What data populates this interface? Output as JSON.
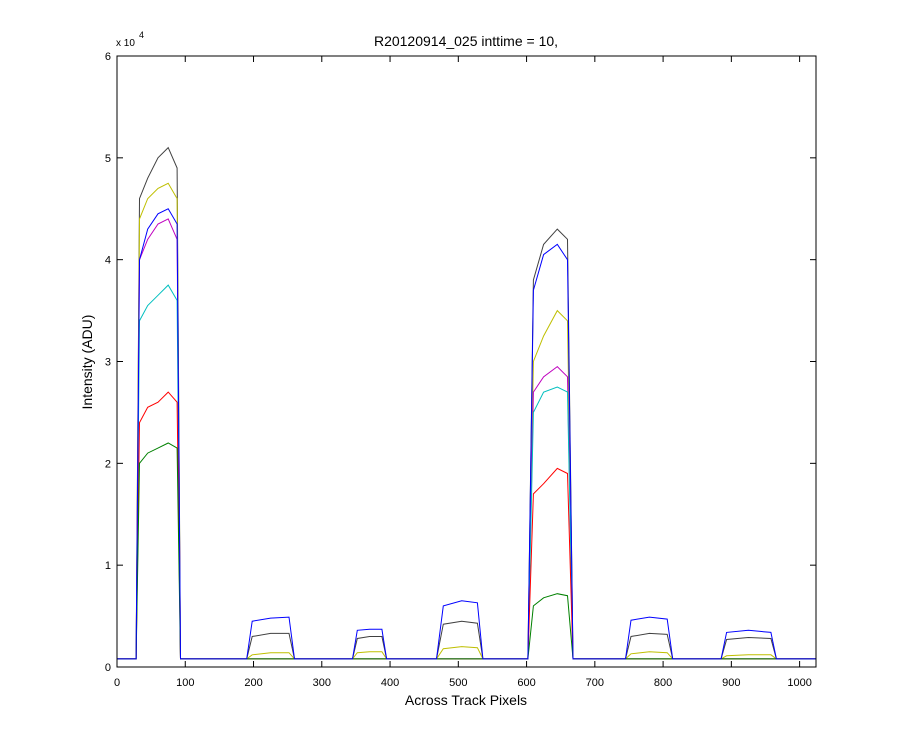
{
  "chart_data": {
    "type": "line",
    "title": "R20120914_025 inttime = 10,",
    "x_label": "Across Track Pixels",
    "y_label": "Intensity (ADU)",
    "y_multiplier": {
      "base": "x 10",
      "exponent": "4"
    },
    "x": [
      0,
      28,
      33,
      45,
      60,
      75,
      88,
      93,
      100,
      190,
      198,
      225,
      252,
      260,
      345,
      352,
      370,
      388,
      395,
      468,
      478,
      505,
      528,
      536,
      602,
      610,
      625,
      645,
      660,
      668,
      745,
      753,
      780,
      806,
      814,
      885,
      893,
      925,
      958,
      966,
      1024
    ],
    "xlim": [
      0,
      1024
    ],
    "xticks": [
      0,
      100,
      200,
      300,
      400,
      500,
      600,
      700,
      800,
      900,
      1000
    ],
    "ylim": [
      0,
      60000
    ],
    "yticks": [
      {
        "value": 0,
        "label": "0"
      },
      {
        "value": 10000,
        "label": "1"
      },
      {
        "value": 20000,
        "label": "2"
      },
      {
        "value": 30000,
        "label": "3"
      },
      {
        "value": 40000,
        "label": "4"
      },
      {
        "value": 50000,
        "label": "5"
      },
      {
        "value": 60000,
        "label": "6"
      }
    ],
    "grid": false,
    "series": [
      {
        "color": "#404040",
        "values": [
          800,
          800,
          46000,
          48000,
          50000,
          51000,
          49000,
          800,
          800,
          800,
          3000,
          3300,
          3300,
          800,
          800,
          2800,
          3000,
          3000,
          800,
          800,
          4200,
          4500,
          4300,
          800,
          800,
          38000,
          41500,
          43000,
          42000,
          800,
          800,
          3000,
          3300,
          3200,
          800,
          800,
          2700,
          2900,
          2800,
          800,
          800
        ]
      },
      {
        "color": "#bfbf00",
        "values": [
          800,
          800,
          44000,
          46000,
          47000,
          47500,
          46000,
          800,
          800,
          800,
          1200,
          1400,
          1400,
          800,
          800,
          1400,
          1500,
          1500,
          800,
          800,
          1800,
          2000,
          1900,
          800,
          800,
          30000,
          32500,
          35000,
          34000,
          800,
          800,
          1300,
          1500,
          1400,
          800,
          800,
          1100,
          1200,
          1200,
          800,
          800
        ]
      },
      {
        "color": "#bf00bf",
        "values": [
          800,
          800,
          40000,
          42000,
          43500,
          44000,
          42000,
          800,
          800,
          800,
          800,
          800,
          800,
          800,
          800,
          800,
          800,
          800,
          800,
          800,
          800,
          800,
          800,
          800,
          800,
          27000,
          28500,
          29500,
          28500,
          800,
          800,
          800,
          800,
          800,
          800,
          800,
          800,
          800,
          800,
          800,
          800
        ]
      },
      {
        "color": "#00bfbf",
        "values": [
          800,
          800,
          34000,
          35500,
          36500,
          37500,
          36000,
          800,
          800,
          800,
          800,
          800,
          800,
          800,
          800,
          800,
          800,
          800,
          800,
          800,
          800,
          800,
          800,
          800,
          800,
          25000,
          27000,
          27500,
          27000,
          800,
          800,
          800,
          800,
          800,
          800,
          800,
          800,
          800,
          800,
          800,
          800
        ]
      },
      {
        "color": "#ff0000",
        "values": [
          800,
          800,
          24000,
          25500,
          26000,
          27000,
          26000,
          800,
          800,
          800,
          800,
          800,
          800,
          800,
          800,
          800,
          800,
          800,
          800,
          800,
          800,
          800,
          800,
          800,
          800,
          17000,
          18000,
          19500,
          19000,
          800,
          800,
          800,
          800,
          800,
          800,
          800,
          800,
          800,
          800,
          800,
          800
        ]
      },
      {
        "color": "#008000",
        "values": [
          800,
          800,
          20000,
          21000,
          21500,
          22000,
          21500,
          800,
          800,
          800,
          800,
          800,
          800,
          800,
          800,
          800,
          800,
          800,
          800,
          800,
          800,
          800,
          800,
          800,
          800,
          6000,
          6800,
          7200,
          7000,
          800,
          800,
          800,
          800,
          800,
          800,
          800,
          800,
          800,
          800,
          800,
          800
        ]
      },
      {
        "color": "#0000ff",
        "values": [
          800,
          800,
          40000,
          43000,
          44500,
          45000,
          43500,
          800,
          800,
          800,
          4500,
          4800,
          4900,
          800,
          800,
          3600,
          3700,
          3700,
          800,
          800,
          6000,
          6500,
          6300,
          800,
          800,
          37000,
          40500,
          41500,
          40000,
          800,
          800,
          4600,
          4900,
          4700,
          800,
          800,
          3400,
          3600,
          3400,
          800,
          800
        ]
      }
    ]
  }
}
